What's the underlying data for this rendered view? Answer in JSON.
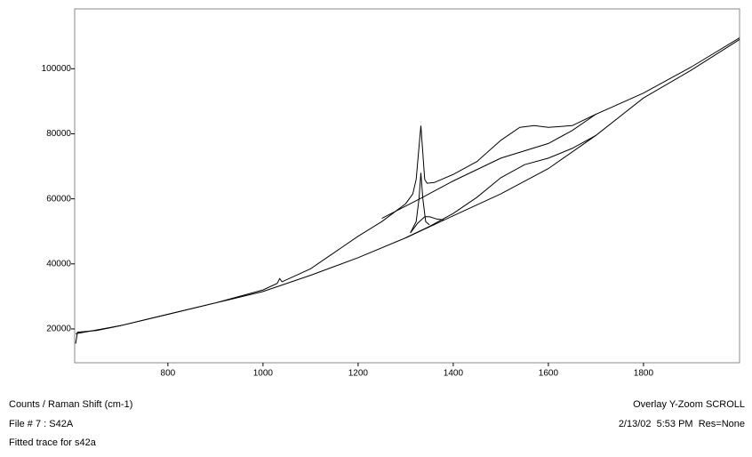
{
  "chart_data": {
    "type": "line",
    "xlim": [
      604,
      2002
    ],
    "ylim": [
      9600,
      118400
    ],
    "xticks": [
      800,
      1000,
      1200,
      1400,
      1600,
      1800
    ],
    "yticks": [
      20000,
      40000,
      60000,
      80000,
      100000
    ],
    "series": [
      {
        "color": "#000000",
        "x": [
          606,
          610,
          650,
          700,
          800,
          900,
          1000,
          1030,
          1035,
          1040,
          1100,
          1200,
          1250,
          1300,
          1315,
          1322,
          1328,
          1332,
          1336,
          1340,
          1345,
          1360,
          1400,
          1450,
          1500,
          1540,
          1570,
          1600,
          1650,
          1700,
          1800,
          1900,
          2002
        ],
        "values": [
          15500,
          19000,
          19500,
          21000,
          24500,
          28000,
          32000,
          34000,
          35500,
          34500,
          38500,
          48500,
          53000,
          58500,
          61500,
          66000,
          76000,
          82500,
          74000,
          66000,
          64800,
          65000,
          67500,
          71500,
          78000,
          82000,
          82500,
          82000,
          82500,
          86000,
          92500,
          100500,
          109500
        ]
      },
      {
        "color": "#000000",
        "x": [
          606,
          700,
          800,
          900,
          1000,
          1100,
          1200,
          1300,
          1400,
          1500,
          1600,
          1700,
          1800,
          1900,
          2002
        ],
        "values": [
          18500,
          21000,
          24500,
          28000,
          31500,
          36500,
          41900,
          48000,
          54800,
          61500,
          69300,
          79500,
          91000,
          99500,
          109000
        ]
      },
      {
        "color": "#000000",
        "x": [
          1300,
          1350,
          1400,
          1450,
          1500,
          1550,
          1600,
          1650,
          1700
        ],
        "values": [
          48000,
          51500,
          55500,
          60500,
          66500,
          70500,
          72500,
          75500,
          79500
        ]
      },
      {
        "color": "#000000",
        "x": [
          1310,
          1322,
          1328,
          1332,
          1336,
          1342,
          1350
        ],
        "values": [
          49500,
          53000,
          60000,
          68000,
          60000,
          53000,
          52000
        ]
      },
      {
        "color": "#000000",
        "x": [
          1310,
          1325,
          1340,
          1350,
          1365,
          1380
        ],
        "values": [
          49500,
          52500,
          54500,
          54500,
          53800,
          53500
        ]
      },
      {
        "color": "#000000",
        "x": [
          1250,
          1330,
          1400,
          1500,
          1600,
          1650,
          1700
        ],
        "values": [
          54000,
          60000,
          65500,
          72500,
          77000,
          81000,
          86000
        ]
      }
    ]
  },
  "footer": {
    "left": [
      "Counts / Raman Shift (cm-1)",
      "File # 7 : S42A",
      "Fitted trace for s42a"
    ],
    "right": [
      "Overlay Y-Zoom SCROLL",
      "2/13/02  5:53 PM  Res=None"
    ]
  }
}
